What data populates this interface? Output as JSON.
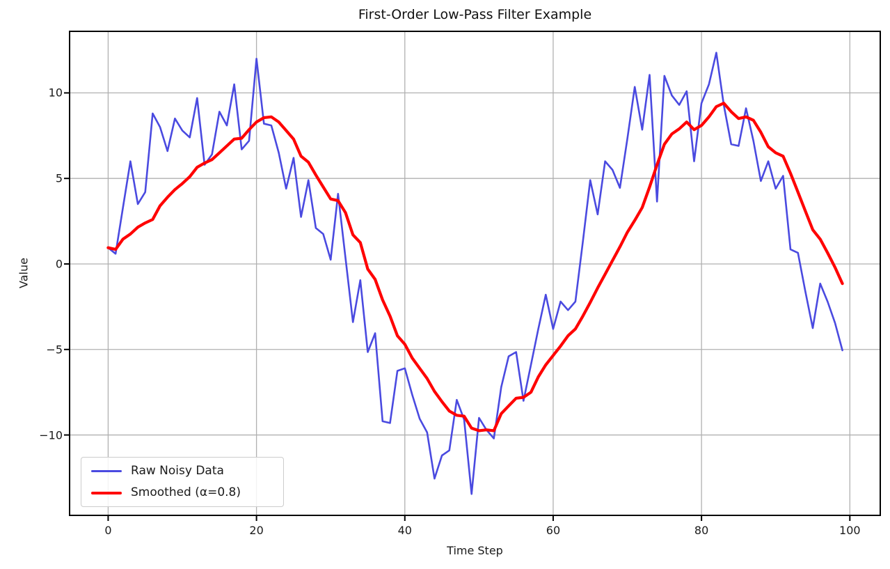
{
  "chart_data": {
    "type": "line",
    "title": "First-Order Low-Pass Filter Example",
    "xlabel": "Time Step",
    "ylabel": "Value",
    "x_ticks": [
      0,
      20,
      40,
      60,
      80,
      100
    ],
    "y_ticks": [
      -10,
      -5,
      0,
      5,
      10
    ],
    "xlim": [
      -5.2,
      104.1
    ],
    "ylim": [
      -14.7,
      13.6
    ],
    "grid": true,
    "grid_color": "#b0b0b0",
    "legend_position": "lower left",
    "x": {
      "start": 0,
      "step": 1,
      "count": 100
    },
    "series": [
      {
        "name": "Raw Noisy Data",
        "color": "#4a4ae0",
        "width": 2.6,
        "values": [
          0.95,
          0.6,
          3.3,
          6.0,
          3.5,
          4.2,
          8.8,
          8.0,
          6.6,
          8.5,
          7.8,
          7.4,
          9.7,
          5.8,
          6.4,
          8.9,
          8.1,
          10.5,
          6.7,
          7.2,
          12.0,
          8.2,
          8.1,
          6.5,
          4.4,
          6.2,
          2.75,
          4.9,
          2.1,
          1.75,
          0.25,
          4.1,
          0.35,
          -3.4,
          -0.95,
          -5.15,
          -4.05,
          -9.2,
          -9.3,
          -6.25,
          -6.1,
          -7.65,
          -9.05,
          -9.85,
          -12.55,
          -11.2,
          -10.9,
          -7.95,
          -9.1,
          -13.45,
          -9.0,
          -9.7,
          -10.2,
          -7.2,
          -5.4,
          -5.15,
          -8.0,
          -5.9,
          -3.8,
          -1.8,
          -3.8,
          -2.2,
          -2.7,
          -2.2,
          1.3,
          4.9,
          2.9,
          6.0,
          5.5,
          4.45,
          7.3,
          10.35,
          7.85,
          11.05,
          3.65,
          11.0,
          9.85,
          9.3,
          10.1,
          6.0,
          9.4,
          10.5,
          12.35,
          9.3,
          7.0,
          6.9,
          9.1,
          7.2,
          4.85,
          6.0,
          4.4,
          5.15,
          0.85,
          0.65,
          -1.6,
          -3.75,
          -1.15,
          -2.2,
          -3.45,
          -5.05
        ]
      },
      {
        "name": "Smoothed (α=0.8)",
        "color": "#ff0000",
        "width": 4.2,
        "values": [
          0.95,
          0.85,
          1.45,
          1.75,
          2.15,
          2.4,
          2.6,
          3.4,
          3.9,
          4.35,
          4.7,
          5.1,
          5.65,
          5.9,
          6.1,
          6.5,
          6.9,
          7.3,
          7.35,
          7.85,
          8.3,
          8.55,
          8.6,
          8.3,
          7.8,
          7.3,
          6.3,
          5.95,
          5.2,
          4.5,
          3.8,
          3.7,
          3.0,
          1.7,
          1.25,
          -0.3,
          -0.9,
          -2.1,
          -3.05,
          -4.2,
          -4.7,
          -5.5,
          -6.1,
          -6.7,
          -7.45,
          -8.05,
          -8.6,
          -8.85,
          -8.9,
          -9.6,
          -9.75,
          -9.7,
          -9.75,
          -8.75,
          -8.3,
          -7.85,
          -7.8,
          -7.5,
          -6.6,
          -5.9,
          -5.35,
          -4.8,
          -4.2,
          -3.8,
          -3.05,
          -2.25,
          -1.4,
          -0.6,
          0.2,
          1.0,
          1.85,
          2.55,
          3.3,
          4.5,
          5.8,
          7.0,
          7.6,
          7.9,
          8.3,
          7.85,
          8.1,
          8.6,
          9.2,
          9.4,
          8.9,
          8.5,
          8.6,
          8.4,
          7.7,
          6.85,
          6.5,
          6.3,
          5.3,
          4.2,
          3.1,
          2.0,
          1.45,
          0.65,
          -0.2,
          -1.15
        ]
      }
    ]
  }
}
